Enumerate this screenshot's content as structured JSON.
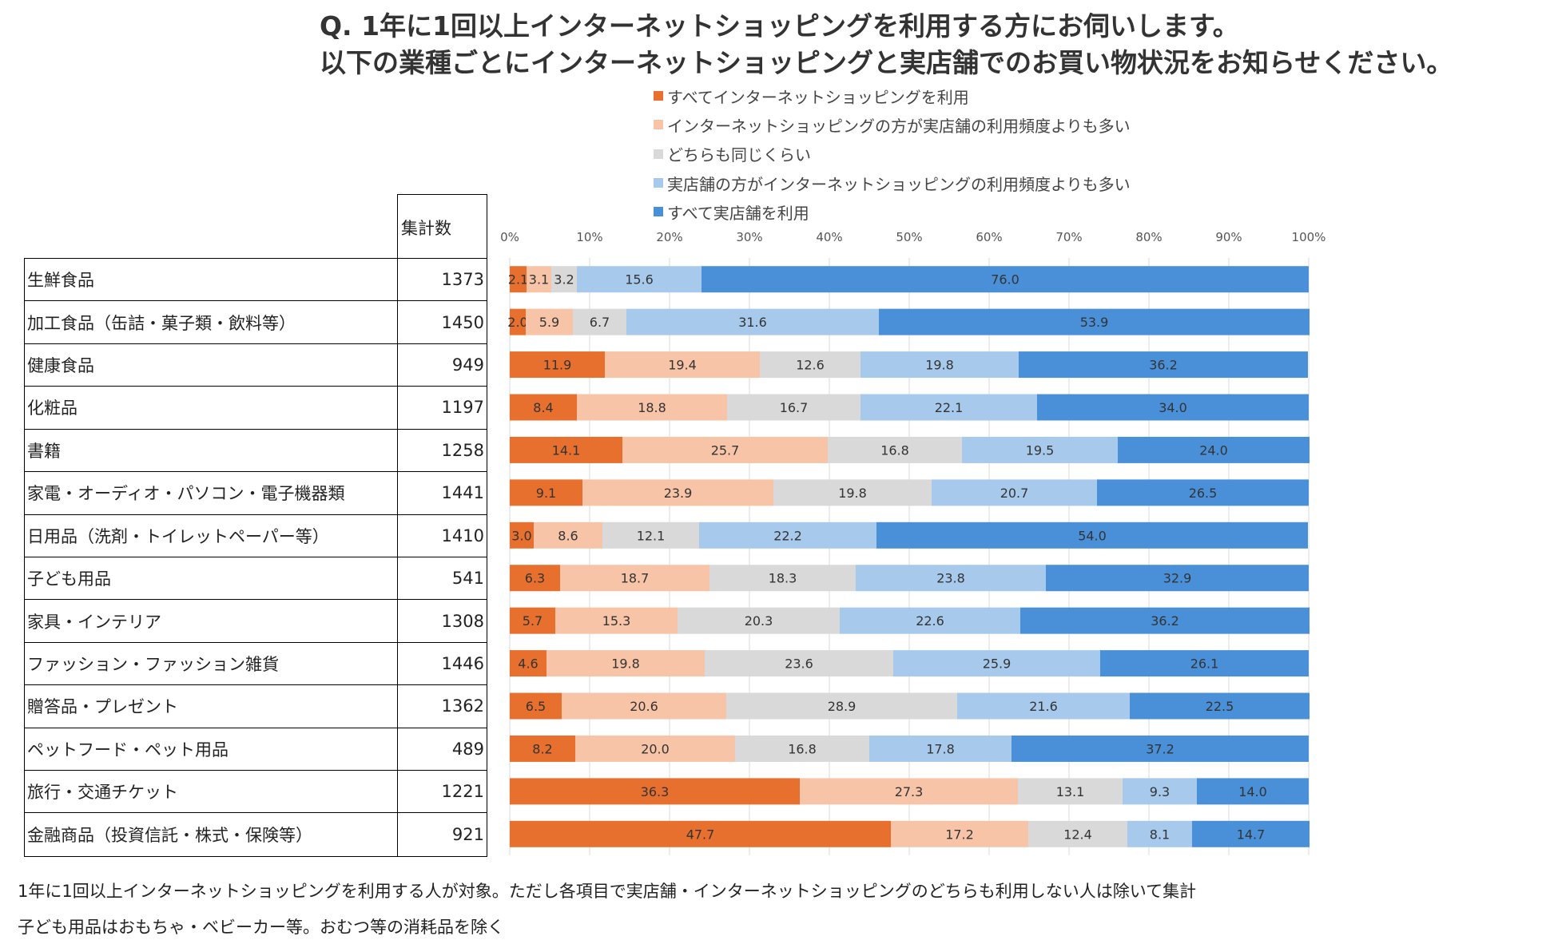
{
  "title_lines": [
    "Q. 1年に1回以上インターネットショッピングを利用する方にお伺いします。",
    "以下の業種ごとにインターネットショッピングと実店舗でのお買い物状況をお知らせください。"
  ],
  "table": {
    "count_header": "集計数",
    "rows": [
      {
        "label": "生鮮食品",
        "count": "1373"
      },
      {
        "label": "加工食品（缶詰・菓子類・飲料等）",
        "count": "1450"
      },
      {
        "label": "健康食品",
        "count": "949"
      },
      {
        "label": "化粧品",
        "count": "1197"
      },
      {
        "label": "書籍",
        "count": "1258"
      },
      {
        "label": "家電・オーディオ・パソコン・電子機器類",
        "count": "1441"
      },
      {
        "label": "日用品（洗剤・トイレットペーパー等）",
        "count": "1410"
      },
      {
        "label": "子ども用品",
        "count": "541"
      },
      {
        "label": "家具・インテリア",
        "count": "1308"
      },
      {
        "label": "ファッション・ファッション雑貨",
        "count": "1446"
      },
      {
        "label": "贈答品・プレゼント",
        "count": "1362"
      },
      {
        "label": "ペットフード・ペット用品",
        "count": "489"
      },
      {
        "label": "旅行・交通チケット",
        "count": "1221"
      },
      {
        "label": "金融商品（投資信託・株式・保険等）",
        "count": "921"
      }
    ]
  },
  "chart_data": {
    "type": "bar",
    "orientation": "horizontal",
    "stacked": "percent",
    "xlim": [
      0,
      100
    ],
    "x_ticks": [
      "0%",
      "10%",
      "20%",
      "30%",
      "40%",
      "50%",
      "60%",
      "70%",
      "80%",
      "90%",
      "100%"
    ],
    "grid": true,
    "legend_position": "top",
    "categories": [
      "生鮮食品",
      "加工食品（缶詰・菓子類・飲料等）",
      "健康食品",
      "化粧品",
      "書籍",
      "家電・オーディオ・パソコン・電子機器類",
      "日用品（洗剤・トイレットペーパー等）",
      "子ども用品",
      "家具・インテリア",
      "ファッション・ファッション雑貨",
      "贈答品・プレゼント",
      "ペットフード・ペット用品",
      "旅行・交通チケット",
      "金融商品（投資信託・株式・保険等）"
    ],
    "series": [
      {
        "name": "すべてインターネットショッピングを利用",
        "color": "#E8702E",
        "values": [
          2.1,
          2.0,
          11.9,
          8.4,
          14.1,
          9.1,
          3.0,
          6.3,
          5.7,
          4.6,
          6.5,
          8.2,
          36.3,
          47.7
        ]
      },
      {
        "name": "インターネットショッピングの方が実店舗の利用頻度よりも多い",
        "color": "#F7C4A7",
        "values": [
          3.1,
          5.9,
          19.4,
          18.8,
          25.7,
          23.9,
          8.6,
          18.7,
          15.3,
          19.8,
          20.6,
          20.0,
          27.3,
          17.2
        ]
      },
      {
        "name": "どちらも同じくらい",
        "color": "#D9D9D9",
        "values": [
          3.2,
          6.7,
          12.6,
          16.7,
          16.8,
          19.8,
          12.1,
          18.3,
          20.3,
          23.6,
          28.9,
          16.8,
          13.1,
          12.4
        ]
      },
      {
        "name": "実店舗の方がインターネットショッピングの利用頻度よりも多い",
        "color": "#A7CAEC",
        "values": [
          15.6,
          31.6,
          19.8,
          22.1,
          19.5,
          20.7,
          22.2,
          23.8,
          22.6,
          25.9,
          21.6,
          17.8,
          9.3,
          8.1
        ]
      },
      {
        "name": "すべて実店舗を利用",
        "color": "#4A90D9",
        "values": [
          76.0,
          53.9,
          36.2,
          34.0,
          24.0,
          26.5,
          54.0,
          32.9,
          36.2,
          26.1,
          22.5,
          37.2,
          14.0,
          14.7
        ]
      }
    ],
    "value_labels": [
      [
        "2.1",
        "3.1",
        "3.2",
        "15.6",
        "76.0"
      ],
      [
        "2.0",
        "5.9",
        "6.7",
        "31.6",
        "53.9"
      ],
      [
        "11.9",
        "19.4",
        "12.6",
        "19.8",
        "36.2"
      ],
      [
        "8.4",
        "18.8",
        "16.7",
        "22.1",
        "34.0"
      ],
      [
        "14.1",
        "25.7",
        "16.8",
        "19.5",
        "24.0"
      ],
      [
        "9.1",
        "23.9",
        "19.8",
        "20.7",
        "26.5"
      ],
      [
        "3.0",
        "8.6",
        "12.1",
        "22.2",
        "54.0"
      ],
      [
        "6.3",
        "18.7",
        "18.3",
        "23.8",
        "32.9"
      ],
      [
        "5.7",
        "15.3",
        "20.3",
        "22.6",
        "36.2"
      ],
      [
        "4.6",
        "19.8",
        "23.6",
        "25.9",
        "26.1"
      ],
      [
        "6.5",
        "20.6",
        "28.9",
        "21.6",
        "22.5"
      ],
      [
        "8.2",
        "20.0",
        "16.8",
        "17.8",
        "37.2"
      ],
      [
        "36.3",
        "27.3",
        "13.1",
        "9.3",
        "14.0"
      ],
      [
        "47.7",
        "17.2",
        "12.4",
        "8.1",
        "14.7"
      ]
    ]
  },
  "notes": [
    "1年に1回以上インターネットショッピングを利用する人が対象。ただし各項目で実店舗・インターネットショッピングのどちらも利用しない人は除いて集計",
    "子ども用品はおもちゃ・ベビーカー等。おむつ等の消耗品を除く"
  ]
}
